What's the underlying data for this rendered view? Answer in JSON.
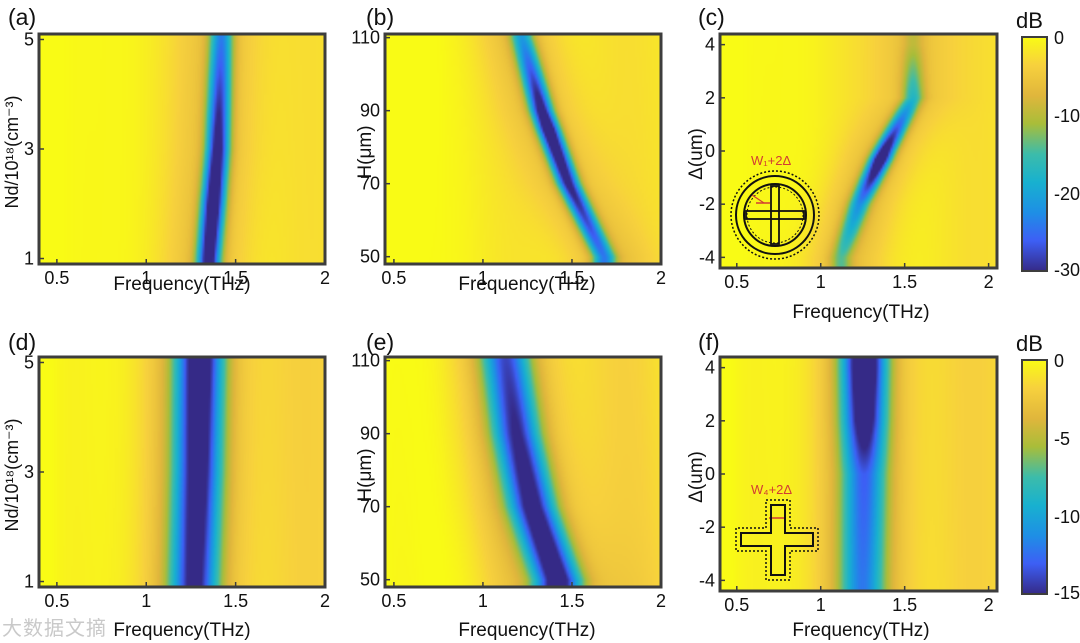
{
  "chart_data": [
    {
      "id": "a",
      "type": "heatmap",
      "panel_label": "(a)",
      "xlabel": "Frequency(THz)",
      "ylabel": "Nd/10¹⁸(cm⁻³)",
      "xlim": [
        0.4,
        2.0
      ],
      "ylim": [
        0.9,
        5.1
      ],
      "xticks": [
        "0.5",
        "1",
        "1.5",
        "2"
      ],
      "yticks": [
        "1",
        "3",
        "5"
      ],
      "ytick_values": [
        1,
        3,
        5
      ],
      "dip": {
        "freq_at_y": [
          [
            1,
            1.35
          ],
          [
            3,
            1.4
          ],
          [
            5,
            1.42
          ]
        ],
        "min_db_at_y": [
          [
            1,
            -28
          ],
          [
            2,
            -30
          ],
          [
            3,
            -27
          ],
          [
            5,
            -18
          ]
        ]
      }
    },
    {
      "id": "b",
      "type": "heatmap",
      "panel_label": "(b)",
      "xlabel": "Frequency(THz)",
      "ylabel": "H(μm)",
      "xlim": [
        0.45,
        2.0
      ],
      "ylim": [
        48,
        111
      ],
      "xticks": [
        "0.5",
        "1",
        "1.5",
        "2"
      ],
      "yticks": [
        "50",
        "70",
        "90",
        "110"
      ],
      "ytick_values": [
        50,
        70,
        90,
        110
      ],
      "dip": {
        "freq_at_y": [
          [
            50,
            1.68
          ],
          [
            70,
            1.48
          ],
          [
            90,
            1.33
          ],
          [
            110,
            1.22
          ]
        ],
        "min_db_at_y": [
          [
            50,
            -18
          ],
          [
            70,
            -26
          ],
          [
            85,
            -30
          ],
          [
            110,
            -15
          ]
        ]
      }
    },
    {
      "id": "c",
      "type": "heatmap",
      "panel_label": "(c)",
      "xlabel": "Frequency(THz)",
      "ylabel": "Δ(um)",
      "xlim": [
        0.4,
        2.05
      ],
      "ylim": [
        -4.4,
        4.4
      ],
      "xticks": [
        "0.5",
        "1",
        "1.5",
        "2"
      ],
      "yticks": [
        "-4",
        "-2",
        "0",
        "2",
        "4"
      ],
      "ytick_values": [
        -4,
        -2,
        0,
        2,
        4
      ],
      "dip": {
        "freq_at_y": [
          [
            -4,
            1.12
          ],
          [
            -2,
            1.23
          ],
          [
            0,
            1.38
          ],
          [
            2,
            1.55
          ]
        ],
        "min_db_at_y": [
          [
            -4,
            -8
          ],
          [
            -2,
            -16
          ],
          [
            -0.3,
            -30
          ],
          [
            2,
            -12
          ],
          [
            4,
            -4
          ]
        ]
      },
      "inset_label": "W₁+2Δ"
    },
    {
      "id": "d",
      "type": "heatmap",
      "panel_label": "(d)",
      "xlabel": "Frequency(THz)",
      "ylabel": "Nd/10¹⁸(cm⁻³)",
      "xlim": [
        0.4,
        2.0
      ],
      "ylim": [
        0.9,
        5.1
      ],
      "xticks": [
        "0.5",
        "1",
        "1.5",
        "2"
      ],
      "yticks": [
        "1",
        "3",
        "5"
      ],
      "ytick_values": [
        1,
        3,
        5
      ],
      "dip": {
        "freq_at_y": [
          [
            1,
            1.27
          ],
          [
            3,
            1.29
          ],
          [
            5,
            1.3
          ]
        ],
        "min_db_at_y": [
          [
            1,
            -12
          ],
          [
            3,
            -13
          ],
          [
            5,
            -14
          ]
        ]
      }
    },
    {
      "id": "e",
      "type": "heatmap",
      "panel_label": "(e)",
      "xlabel": "Frequency(THz)",
      "ylabel": "H(μm)",
      "xlim": [
        0.45,
        2.0
      ],
      "ylim": [
        48,
        111
      ],
      "xticks": [
        "0.5",
        "1",
        "1.5",
        "2"
      ],
      "yticks": [
        "50",
        "70",
        "90",
        "110"
      ],
      "ytick_values": [
        50,
        70,
        90,
        110
      ],
      "dip": {
        "freq_at_y": [
          [
            50,
            1.42
          ],
          [
            70,
            1.28
          ],
          [
            90,
            1.19
          ],
          [
            110,
            1.13
          ]
        ],
        "min_db_at_y": [
          [
            50,
            -14
          ],
          [
            80,
            -12
          ],
          [
            110,
            -10
          ]
        ]
      }
    },
    {
      "id": "f",
      "type": "heatmap",
      "panel_label": "(f)",
      "xlabel": "Frequency(THz)",
      "ylabel": "Δ(um)",
      "xlim": [
        0.4,
        2.05
      ],
      "ylim": [
        -4.4,
        4.4
      ],
      "xticks": [
        "0.5",
        "1",
        "1.5",
        "2"
      ],
      "yticks": [
        "-4",
        "-2",
        "0",
        "2",
        "4"
      ],
      "ytick_values": [
        -4,
        -2,
        0,
        2,
        4
      ],
      "dip": {
        "freq_at_y": [
          [
            -4,
            1.25
          ],
          [
            0,
            1.26
          ],
          [
            4,
            1.26
          ]
        ],
        "min_db_at_y": [
          [
            -4,
            -8
          ],
          [
            0,
            -9
          ],
          [
            2,
            -13
          ],
          [
            4,
            -15
          ]
        ]
      },
      "inset_label": "W₄+2Δ"
    }
  ],
  "colorbars": [
    {
      "id": "cb1",
      "unit": "dB",
      "range": [
        -30,
        0
      ],
      "ticks": [
        "0",
        "-10",
        "-20",
        "-30"
      ],
      "tick_values": [
        0,
        -10,
        -20,
        -30
      ]
    },
    {
      "id": "cb2",
      "unit": "dB",
      "range": [
        -15,
        0
      ],
      "ticks": [
        "0",
        "-5",
        "-10",
        "-15"
      ],
      "tick_values": [
        0,
        -5,
        -10,
        -15
      ]
    }
  ],
  "watermark": "大数据文摘",
  "colors": {
    "frame": "#3d3d3d",
    "inset_red": "#d23c32",
    "text": "#111111"
  }
}
